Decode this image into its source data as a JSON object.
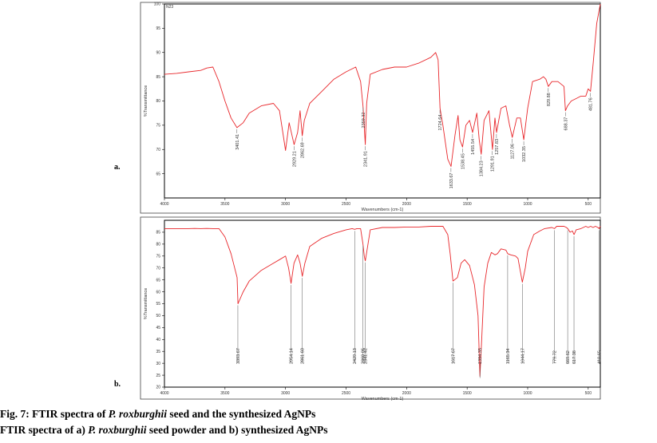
{
  "chart_data": [
    {
      "type": "line",
      "panel_label": "a.",
      "corner_text": "N23",
      "xlabel": "Wavenumbers (cm-1)",
      "ylabel": "%Transmittance",
      "xlim": [
        4000,
        400
      ],
      "ylim": [
        60,
        100
      ],
      "x_ticks": [
        4000,
        3500,
        3000,
        2500,
        2000,
        1500,
        1000,
        500
      ],
      "y_ticks": [
        65,
        70,
        75,
        80,
        85,
        90,
        95,
        100
      ],
      "line_color": "#e8262a",
      "series": [
        {
          "x": [
            4000,
            3900,
            3800,
            3700,
            3650,
            3600,
            3550,
            3500,
            3450,
            3401,
            3350,
            3300,
            3200,
            3100,
            3050,
            3000,
            2970,
            2929,
            2900,
            2880,
            2862,
            2845,
            2800,
            2700,
            2600,
            2500,
            2420,
            2380,
            2360,
            2341,
            2330,
            2300,
            2200,
            2100,
            2000,
            1900,
            1800,
            1760,
            1740,
            1724,
            1700,
            1660,
            1633,
            1600,
            1575,
            1560,
            1538,
            1510,
            1480,
            1455,
            1420,
            1400,
            1384,
            1360,
            1320,
            1291,
            1270,
            1257,
            1220,
            1180,
            1150,
            1127,
            1090,
            1060,
            1032,
            1000,
            960,
            900,
            870,
            850,
            829,
            800,
            750,
            700,
            688,
            670,
            640,
            600,
            560,
            520,
            500,
            481,
            460,
            430,
            400
          ],
          "y": [
            85.5,
            85.7,
            86.0,
            86.3,
            86.8,
            87.0,
            84.0,
            80.0,
            76.5,
            74.5,
            75.5,
            77.5,
            79.0,
            79.5,
            78.0,
            69.8,
            75.5,
            71.0,
            73.5,
            78.0,
            72.8,
            76.0,
            79.5,
            82.0,
            84.5,
            86.0,
            87.0,
            84.0,
            79.0,
            71.0,
            79.5,
            85.5,
            86.5,
            87.0,
            87.0,
            87.8,
            89.0,
            90.0,
            88.5,
            78.5,
            75.0,
            68.0,
            66.5,
            73.0,
            77.0,
            72.0,
            70.5,
            75.0,
            76.0,
            73.5,
            77.5,
            72.0,
            69.0,
            76.0,
            78.0,
            70.0,
            76.5,
            73.5,
            78.5,
            79.0,
            75.0,
            72.5,
            76.5,
            76.5,
            72.0,
            78.5,
            84.0,
            84.5,
            85.0,
            84.5,
            83.0,
            84.0,
            84.0,
            83.0,
            78.0,
            79.0,
            80.0,
            80.5,
            81.0,
            81.0,
            82.5,
            82.0,
            87.5,
            96.0,
            100.0
          ]
        }
      ],
      "peaks": [
        {
          "x": 3401.41,
          "y": 74.5,
          "label": "3401.41"
        },
        {
          "x": 2929.21,
          "y": 71.0,
          "label": "2929.21"
        },
        {
          "x": 2862.69,
          "y": 72.8,
          "label": "2862.69"
        },
        {
          "x": 2359.32,
          "y": 79.0,
          "label": "2359.32"
        },
        {
          "x": 2341.91,
          "y": 71.0,
          "label": "2341.91"
        },
        {
          "x": 1724.64,
          "y": 78.5,
          "label": "1724.64"
        },
        {
          "x": 1633.67,
          "y": 66.5,
          "label": "1633.67"
        },
        {
          "x": 1538.45,
          "y": 70.5,
          "label": "1538.45"
        },
        {
          "x": 1455.54,
          "y": 73.5,
          "label": "1455.54"
        },
        {
          "x": 1384.23,
          "y": 69.0,
          "label": "1384.23"
        },
        {
          "x": 1291.91,
          "y": 70.0,
          "label": "1291.91"
        },
        {
          "x": 1257.83,
          "y": 73.5,
          "label": "1257.83"
        },
        {
          "x": 1127.06,
          "y": 72.5,
          "label": "1127.06"
        },
        {
          "x": 1032.35,
          "y": 72.0,
          "label": "1032.35"
        },
        {
          "x": 829.88,
          "y": 83.0,
          "label": "829.88"
        },
        {
          "x": 688.37,
          "y": 78.0,
          "label": "688.37"
        },
        {
          "x": 481.76,
          "y": 82.0,
          "label": "481.76"
        }
      ]
    },
    {
      "type": "line",
      "panel_label": "b.",
      "xlabel": "Wavenumbers (cm-1)",
      "ylabel": "%Transmittance",
      "xlim": [
        4000,
        400
      ],
      "ylim": [
        20,
        90
      ],
      "x_ticks": [
        4000,
        3500,
        3000,
        2500,
        2000,
        1500,
        1000,
        500
      ],
      "y_ticks": [
        20,
        25,
        30,
        35,
        40,
        45,
        50,
        55,
        60,
        65,
        70,
        75,
        80,
        85
      ],
      "line_color": "#e8262a",
      "series": [
        {
          "x": [
            4000,
            3900,
            3800,
            3750,
            3700,
            3650,
            3600,
            3550,
            3500,
            3450,
            3400,
            3393,
            3350,
            3300,
            3200,
            3100,
            3050,
            3000,
            2975,
            2954,
            2930,
            2900,
            2880,
            2861,
            2840,
            2800,
            2700,
            2600,
            2500,
            2450,
            2429,
            2410,
            2380,
            2360,
            2350,
            2341,
            2330,
            2300,
            2200,
            2100,
            2000,
            1900,
            1800,
            1750,
            1700,
            1660,
            1640,
            1617,
            1580,
            1550,
            1520,
            1480,
            1440,
            1410,
            1394,
            1380,
            1360,
            1330,
            1300,
            1270,
            1250,
            1220,
            1180,
            1165,
            1140,
            1100,
            1080,
            1044,
            1020,
            1000,
            950,
            900,
            860,
            800,
            779,
            760,
            700,
            680,
            669,
            650,
            630,
            617,
            600,
            560,
            520,
            500,
            480,
            460,
            440,
            420,
            410,
            400
          ],
          "y": [
            86.5,
            86.5,
            86.5,
            86.6,
            86.5,
            86.6,
            86.5,
            86.5,
            83.0,
            76.0,
            66.0,
            55.0,
            60.0,
            64.5,
            69.0,
            72.0,
            73.5,
            75.0,
            70.0,
            63.5,
            72.0,
            75.5,
            72.0,
            66.5,
            72.0,
            79.0,
            82.5,
            84.5,
            86.0,
            86.5,
            86.2,
            86.5,
            86.5,
            80.0,
            75.0,
            73.0,
            76.5,
            86.0,
            87.0,
            87.0,
            87.2,
            87.2,
            87.5,
            87.5,
            87.5,
            84.0,
            76.0,
            64.5,
            66.0,
            72.0,
            73.5,
            71.0,
            63.0,
            50.0,
            24.5,
            40.0,
            62.0,
            72.0,
            76.5,
            75.5,
            76.0,
            78.0,
            77.5,
            76.0,
            75.5,
            75.0,
            74.0,
            64.0,
            70.0,
            77.0,
            84.0,
            85.5,
            86.5,
            87.0,
            86.5,
            87.5,
            87.5,
            87.0,
            86.5,
            85.0,
            85.5,
            84.0,
            86.0,
            86.5,
            87.5,
            87.0,
            87.5,
            87.0,
            87.5,
            87.0,
            86.5,
            87.5
          ]
        }
      ],
      "peaks": [
        {
          "x": 3393.67,
          "y": 55.0,
          "label": "3393.67"
        },
        {
          "x": 2954.14,
          "y": 63.5,
          "label": "2954.14"
        },
        {
          "x": 2861.6,
          "y": 66.5,
          "label": "2861.60"
        },
        {
          "x": 2429.13,
          "y": 86.2,
          "label": "2429.13"
        },
        {
          "x": 2360.05,
          "y": 80.0,
          "label": "2360.05"
        },
        {
          "x": 2341.42,
          "y": 73.0,
          "label": "2341.42"
        },
        {
          "x": 1617.67,
          "y": 64.5,
          "label": "1617.67"
        },
        {
          "x": 1394.35,
          "y": 24.5,
          "label": "1394.35"
        },
        {
          "x": 1165.34,
          "y": 76.0,
          "label": "1165.34"
        },
        {
          "x": 1044.17,
          "y": 64.0,
          "label": "1044.17"
        },
        {
          "x": 779.72,
          "y": 86.5,
          "label": "779.72"
        },
        {
          "x": 669.62,
          "y": 86.5,
          "label": "669.62"
        },
        {
          "x": 617.38,
          "y": 84.0,
          "label": "617.38"
        },
        {
          "x": 410.65,
          "y": 86.5,
          "label": "410.65"
        }
      ]
    }
  ],
  "caption": {
    "line1": {
      "prefix": "Fig. 7: FTIR spectra of ",
      "species": "P. roxburghii",
      "suffix": " seed and the synthesized AgNPs"
    },
    "line2": {
      "prefix": "FTIR spectra of a) ",
      "species": "P. roxburghii",
      "suffix": " seed powder and b) synthesized AgNPs"
    }
  }
}
